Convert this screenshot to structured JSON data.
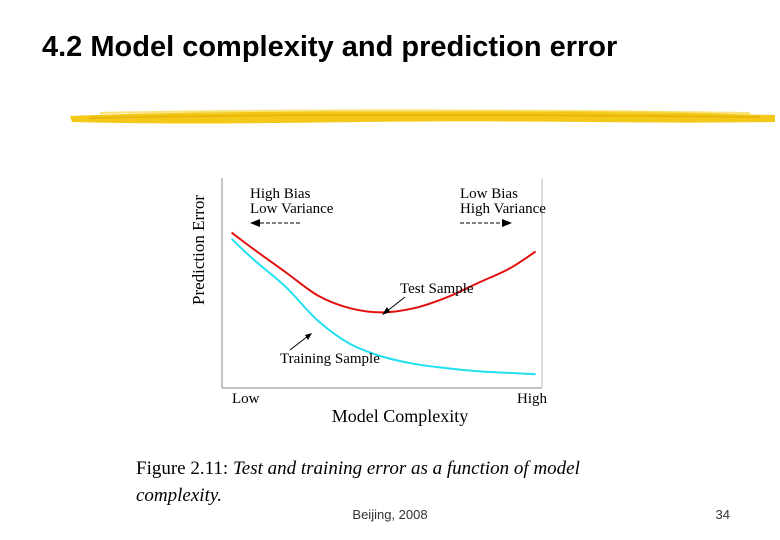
{
  "slide": {
    "title": "4.2 Model complexity and prediction error",
    "footer": "Beijing, 2008",
    "page_number": "34"
  },
  "caption": {
    "label": "Figure 2.11:",
    "text": "Test and training error as a function of model complexity."
  },
  "colors": {
    "underline": "#f2c200",
    "test_curve": "#e01010",
    "training_curve": "#20e0f0",
    "axis": "#888888"
  },
  "chart_data": {
    "type": "line",
    "title": "",
    "xlabel": "Model Complexity",
    "ylabel": "Prediction Error",
    "x_tick_labels": [
      "Low",
      "High"
    ],
    "xlim": [
      0,
      10
    ],
    "ylim": [
      0,
      10
    ],
    "grid": false,
    "annotations": {
      "left_region": [
        "High Bias",
        "Low Variance"
      ],
      "right_region": [
        "Low Bias",
        "High Variance"
      ]
    },
    "series": [
      {
        "name": "Test Sample",
        "x": [
          0.3,
          1.0,
          2.0,
          3.0,
          4.0,
          5.0,
          6.0,
          7.0,
          8.0,
          9.0,
          9.8
        ],
        "y": [
          7.4,
          6.6,
          5.5,
          4.4,
          3.8,
          3.6,
          3.8,
          4.3,
          5.0,
          5.7,
          6.5
        ]
      },
      {
        "name": "Training Sample",
        "x": [
          0.3,
          1.0,
          2.0,
          3.0,
          4.0,
          5.0,
          6.0,
          7.0,
          8.0,
          9.0,
          9.8
        ],
        "y": [
          7.1,
          6.1,
          4.8,
          3.2,
          2.1,
          1.5,
          1.15,
          0.95,
          0.8,
          0.72,
          0.65
        ]
      }
    ]
  }
}
